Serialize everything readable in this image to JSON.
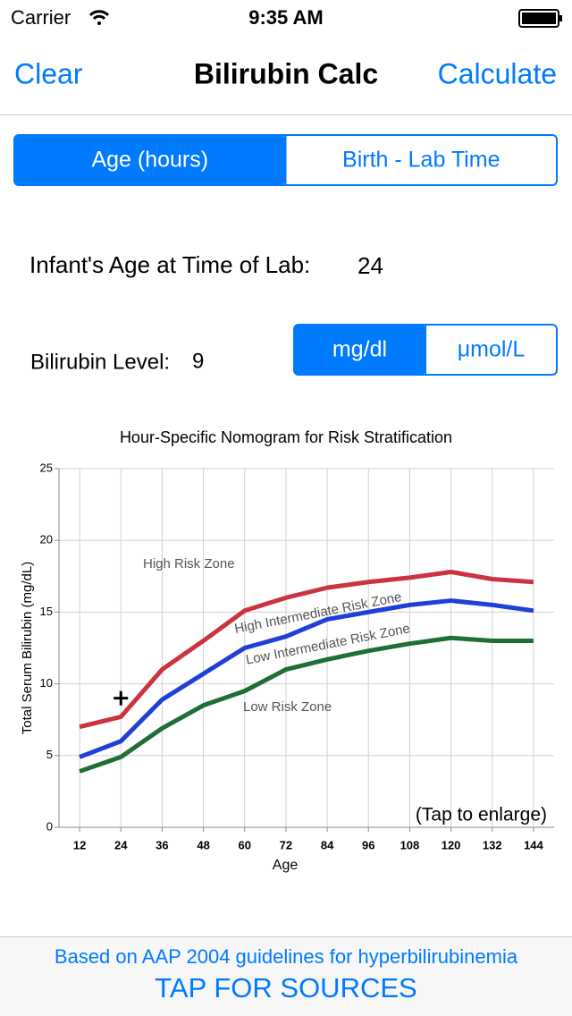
{
  "status_bar": {
    "carrier": "Carrier",
    "time": "9:35 AM"
  },
  "nav": {
    "left": "Clear",
    "title": "Bilirubin Calc",
    "right": "Calculate"
  },
  "mode_segment": {
    "options": [
      "Age (hours)",
      "Birth - Lab Time"
    ],
    "selected": 0
  },
  "age_field": {
    "label": "Infant's Age at Time of Lab:",
    "value": "24"
  },
  "level_field": {
    "label": "Bilirubin Level:",
    "value": "9"
  },
  "unit_segment": {
    "options": [
      "mg/dl",
      "μmol/L"
    ],
    "selected": 0
  },
  "chart_data": {
    "type": "line",
    "title": "Hour-Specific Nomogram for Risk Stratification",
    "x_label": "Age",
    "y_label": "Total Serum Bilirubin (mg/dL)",
    "x": [
      12,
      24,
      36,
      48,
      60,
      72,
      84,
      96,
      108,
      120,
      132,
      144
    ],
    "series": [
      {
        "color": "#cc3340",
        "values": [
          7.0,
          7.7,
          11.0,
          13.0,
          15.1,
          16.0,
          16.7,
          17.1,
          17.4,
          17.8,
          17.3,
          17.1
        ]
      },
      {
        "color": "#1f3fd6",
        "values": [
          4.9,
          6.0,
          8.9,
          10.7,
          12.5,
          13.3,
          14.5,
          15.0,
          15.5,
          15.8,
          15.5,
          15.1
        ]
      },
      {
        "color": "#1f6e35",
        "values": [
          3.9,
          4.9,
          6.9,
          8.5,
          9.5,
          11.0,
          11.7,
          12.3,
          12.8,
          13.2,
          13.0,
          13.0
        ]
      }
    ],
    "xlim": [
      6,
      150
    ],
    "xticks": [
      12,
      24,
      36,
      48,
      60,
      72,
      84,
      96,
      108,
      120,
      132,
      144
    ],
    "ylim": [
      0,
      25
    ],
    "yticks": [
      0,
      5,
      10,
      15,
      20,
      25
    ],
    "grid": true,
    "annotations": [
      "High Risk Zone",
      "High Intermediate Risk Zone",
      "Low Intermediate Risk Zone",
      "Low Risk Zone",
      "(Tap to enlarge)"
    ],
    "marker": {
      "x": 24,
      "y": 9
    }
  },
  "footer": {
    "note": "Based on AAP 2004 guidelines for hyperbilirubinemia",
    "link": "TAP FOR SOURCES"
  }
}
